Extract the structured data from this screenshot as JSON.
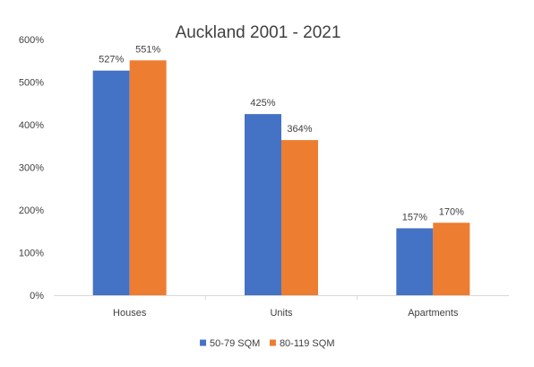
{
  "chart_data": {
    "type": "bar",
    "title": "Auckland 2001 - 2021",
    "categories": [
      "Houses",
      "Units",
      "Apartments"
    ],
    "series": [
      {
        "name": "50-79 SQM",
        "color": "#4472C4",
        "values": [
          527,
          425,
          157
        ],
        "labels": [
          "527%",
          "425%",
          "157%"
        ]
      },
      {
        "name": "80-119 SQM",
        "color": "#ED7D31",
        "values": [
          551,
          364,
          170
        ],
        "labels": [
          "551%",
          "364%",
          "170%"
        ]
      }
    ],
    "ylim": [
      0,
      600
    ],
    "yticks": [
      0,
      100,
      200,
      300,
      400,
      500,
      600
    ],
    "ytick_labels": [
      "0%",
      "100%",
      "200%",
      "300%",
      "400%",
      "500%",
      "600%"
    ],
    "grid": false,
    "legend_position": "bottom"
  }
}
